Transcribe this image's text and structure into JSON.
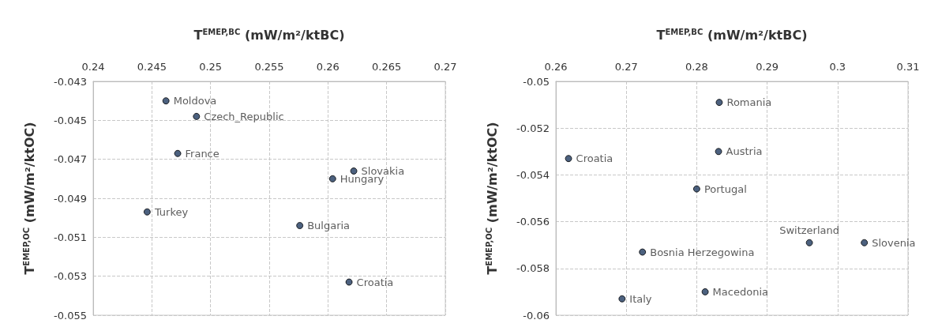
{
  "chart_data": [
    {
      "type": "scatter",
      "xlabel": "T$^{EMEP,BC}$ (mW/m²/ktBC)",
      "ylabel": "T$^{EMEP,OC}$ (mW/m²/ktOC)",
      "x": [
        0.2462,
        0.2488,
        0.2472,
        0.2622,
        0.2604,
        0.2446,
        0.2576,
        0.2618
      ],
      "values": [
        -0.044,
        -0.0448,
        -0.0467,
        -0.0476,
        -0.048,
        -0.0497,
        -0.0504,
        -0.0533
      ],
      "value_labels": [
        "Moldova",
        "Czech_Republic",
        "France",
        "Slovakia",
        "Hungary",
        "Turkey",
        "Bulgaria",
        "Croatia"
      ],
      "color": "#1f3a5f",
      "marker": "circle",
      "grid": true,
      "xlim": [
        0.24,
        0.27
      ],
      "xticks": [
        0.24,
        0.245,
        0.25,
        0.255,
        0.26,
        0.265,
        0.27
      ],
      "ylim": [
        -0.055,
        -0.043
      ],
      "yticks": [
        -0.055,
        -0.053,
        -0.051,
        -0.049,
        -0.047,
        -0.045,
        -0.043
      ]
    },
    {
      "type": "scatter",
      "xlabel": "T$^{EMEP,BC}$ (mW/m²/ktBC)",
      "ylabel": "T$^{EMEP,OC}$ (mW/m²/ktOC)",
      "x": [
        0.2832,
        0.2618,
        0.2831,
        0.28,
        0.296,
        0.3038,
        0.2723,
        0.2812,
        0.2694
      ],
      "values": [
        -0.0509,
        -0.0533,
        -0.053,
        -0.0546,
        -0.0569,
        -0.0569,
        -0.0573,
        -0.059,
        -0.0593
      ],
      "value_labels": [
        "Romania",
        "Croatia",
        "Austria",
        "Portugal",
        "Switzerland",
        "Slovenia",
        "Bosnia Herzegowina",
        "Macedonia",
        "Italy"
      ],
      "color": "#1f3a5f",
      "marker": "circle",
      "grid": true,
      "xlim": [
        0.26,
        0.31
      ],
      "xticks": [
        0.26,
        0.27,
        0.28,
        0.29,
        0.3,
        0.31
      ],
      "ylim": [
        -0.06,
        -0.05
      ],
      "yticks": [
        -0.06,
        -0.058,
        -0.056,
        -0.054,
        -0.052,
        -0.05
      ]
    }
  ]
}
